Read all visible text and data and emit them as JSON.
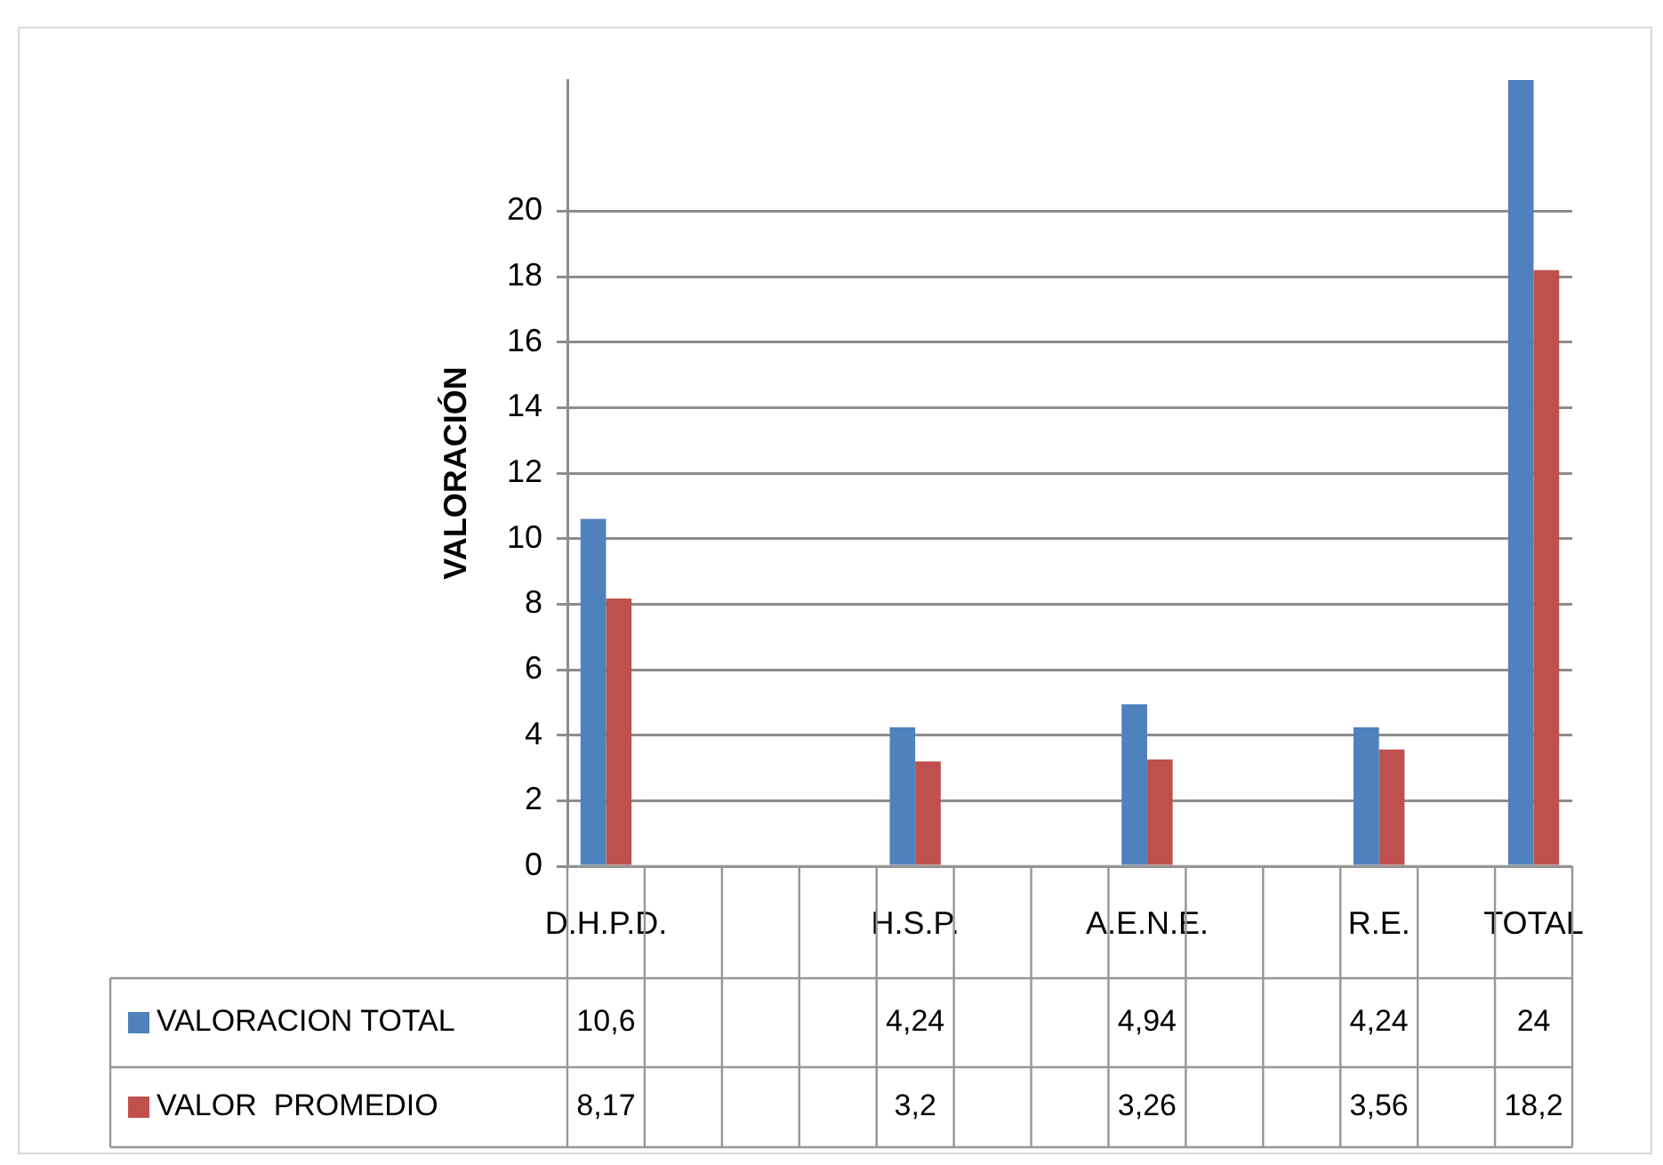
{
  "chart_data": {
    "type": "bar",
    "ylabel": "VALORACIÓN",
    "categories": [
      "D.H.P.D.",
      null,
      null,
      null,
      "H.S.P.",
      null,
      null,
      "A.E.N.E.",
      null,
      null,
      "R.E.",
      null,
      "TOTAL"
    ],
    "series": [
      {
        "name": "VALORACION TOTAL",
        "color": "#4f81bd",
        "values": [
          10.6,
          null,
          null,
          null,
          4.24,
          null,
          null,
          4.94,
          null,
          null,
          4.24,
          null,
          24
        ],
        "value_labels": [
          "10,6",
          null,
          null,
          null,
          "4,24",
          null,
          null,
          "4,94",
          null,
          null,
          "4,24",
          null,
          "24"
        ]
      },
      {
        "name": "VALOR  PROMEDIO",
        "color": "#c0504d",
        "values": [
          8.17,
          null,
          null,
          null,
          3.2,
          null,
          null,
          3.26,
          null,
          null,
          3.56,
          null,
          18.2
        ],
        "value_labels": [
          "8,17",
          null,
          null,
          null,
          "3,2",
          null,
          null,
          "3,26",
          null,
          null,
          "3,56",
          null,
          "18,2"
        ]
      }
    ],
    "ylim": [
      0,
      24
    ],
    "yticks": [
      0,
      2,
      4,
      6,
      8,
      10,
      12,
      14,
      16,
      18,
      20
    ],
    "grid": "y",
    "legend": "bottom left"
  }
}
